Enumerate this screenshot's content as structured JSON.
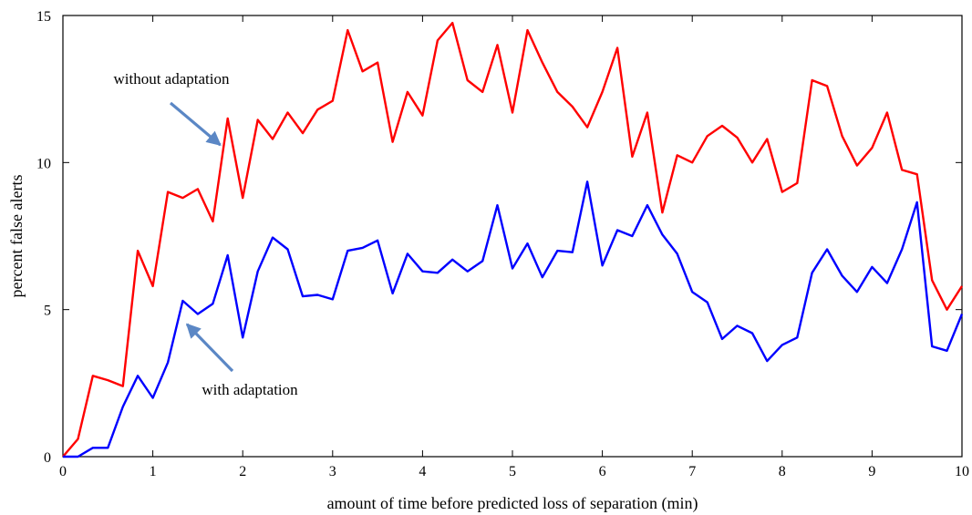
{
  "chart_data": {
    "type": "line",
    "xlabel": "amount of time before predicted loss of separation (min)",
    "ylabel": "percent false alerts",
    "xlim": [
      0,
      10
    ],
    "ylim": [
      0,
      15
    ],
    "xticks": [
      "0",
      "1",
      "2",
      "3",
      "4",
      "5",
      "6",
      "7",
      "8",
      "9",
      "10"
    ],
    "yticks": [
      "0",
      "5",
      "10",
      "15"
    ],
    "grid": false,
    "legend": "none",
    "x": [
      0,
      0.167,
      0.333,
      0.5,
      0.667,
      0.833,
      1.0,
      1.167,
      1.333,
      1.5,
      1.667,
      1.833,
      2.0,
      2.167,
      2.333,
      2.5,
      2.667,
      2.833,
      3.0,
      3.167,
      3.333,
      3.5,
      3.667,
      3.833,
      4.0,
      4.167,
      4.333,
      4.5,
      4.667,
      4.833,
      5.0,
      5.167,
      5.333,
      5.5,
      5.667,
      5.833,
      6.0,
      6.167,
      6.333,
      6.5,
      6.667,
      6.833,
      7.0,
      7.167,
      7.333,
      7.5,
      7.667,
      7.833,
      8.0,
      8.167,
      8.333,
      8.5,
      8.667,
      8.833,
      9.0,
      9.167,
      9.333,
      9.5,
      9.667,
      9.833,
      10.0
    ],
    "series": [
      {
        "color": "#ff0000",
        "values": [
          0.0,
          0.6,
          2.75,
          2.6,
          2.4,
          7.0,
          5.8,
          9.0,
          8.8,
          9.1,
          8.0,
          11.5,
          8.8,
          11.45,
          10.8,
          11.7,
          11.0,
          11.8,
          12.1,
          14.5,
          13.1,
          13.4,
          10.7,
          12.4,
          11.6,
          14.15,
          14.75,
          12.8,
          12.4,
          14.0,
          11.7,
          14.5,
          13.4,
          12.4,
          11.9,
          11.2,
          12.4,
          13.9,
          10.2,
          11.7,
          8.3,
          10.25,
          10.0,
          10.9,
          11.25,
          10.85,
          10.0,
          10.8,
          9.0,
          9.3,
          12.8,
          12.6,
          10.9,
          9.9,
          10.5,
          11.7,
          9.75,
          9.6,
          6.0,
          5.0,
          5.8
        ]
      },
      {
        "color": "#0000ff",
        "values": [
          0.0,
          0.0,
          0.3,
          0.3,
          1.7,
          2.75,
          2.0,
          3.2,
          5.3,
          4.85,
          5.2,
          6.85,
          4.05,
          6.3,
          7.45,
          7.05,
          5.45,
          5.5,
          5.35,
          7.0,
          7.1,
          7.35,
          5.55,
          6.9,
          6.3,
          6.25,
          6.7,
          6.3,
          6.65,
          8.55,
          6.4,
          7.25,
          6.1,
          7.0,
          6.95,
          9.35,
          6.5,
          7.7,
          7.5,
          8.55,
          7.55,
          6.9,
          5.6,
          5.25,
          4.0,
          4.45,
          4.2,
          3.25,
          3.8,
          4.05,
          6.25,
          7.05,
          6.15,
          5.6,
          6.45,
          5.9,
          7.05,
          8.65,
          3.75,
          3.6,
          4.85
        ]
      }
    ],
    "annotations": [
      {
        "text": "without adaptation",
        "target": [
          1.75,
          10.6
        ]
      },
      {
        "text": "with adaptation",
        "target": [
          1.38,
          4.5
        ]
      }
    ]
  },
  "colors": {
    "arrow": "#5b87c5",
    "axis": "#000000"
  }
}
